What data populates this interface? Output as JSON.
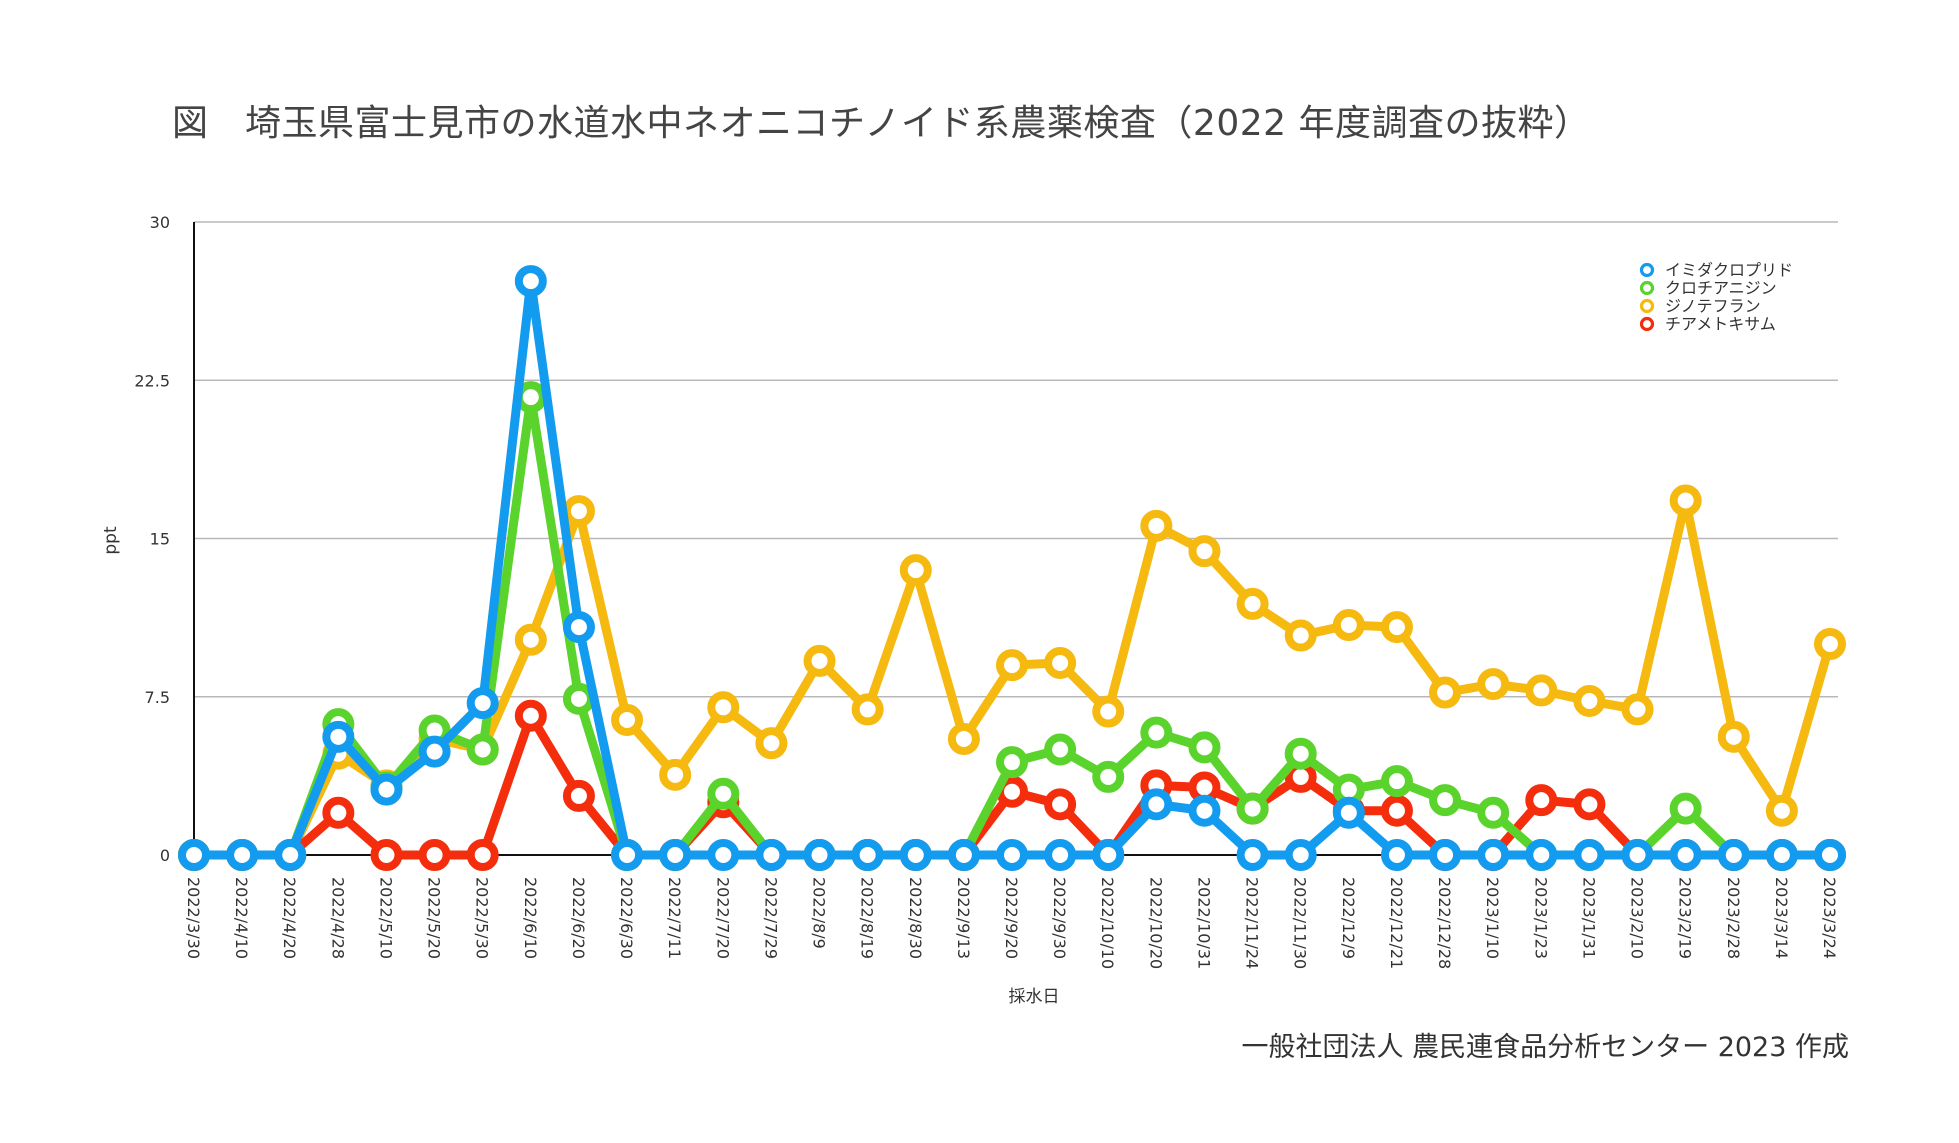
{
  "title": "図　埼玉県富士見市の水道水中ネオニコチノイド系農薬検査（2022 年度調査の抜粋）",
  "credit": "一般社団法人 農民連食品分析センター 2023 作成",
  "chart_data": {
    "type": "line",
    "xlabel": "採水日",
    "ylabel": "ppt",
    "ylim": [
      0,
      30
    ],
    "yticks": [
      "0",
      "7.5",
      "15",
      "22.5",
      "30"
    ],
    "grid": true,
    "legend_position": "top-right",
    "categories": [
      "2022/3/30",
      "2022/4/10",
      "2022/4/20",
      "2022/4/28",
      "2022/5/10",
      "2022/5/20",
      "2022/5/30",
      "2022/6/10",
      "2022/6/20",
      "2022/6/30",
      "2022/7/11",
      "2022/7/20",
      "2022/7/29",
      "2022/8/9",
      "2022/8/19",
      "2022/8/30",
      "2022/9/13",
      "2022/9/20",
      "2022/9/30",
      "2022/10/10",
      "2022/10/20",
      "2022/10/31",
      "2022/11/24",
      "2022/11/30",
      "2022/12/9",
      "2022/12/21",
      "2022/12/28",
      "2023/1/10",
      "2023/1/23",
      "2023/1/31",
      "2023/2/10",
      "2023/2/19",
      "2023/2/28",
      "2023/3/14",
      "2023/3/24"
    ],
    "series": [
      {
        "name": "ジノテフラン",
        "color": "#F5B90F",
        "values": [
          0,
          0,
          0,
          4.8,
          3.3,
          5.5,
          5.0,
          10.2,
          16.3,
          6.4,
          3.8,
          7.0,
          5.3,
          9.2,
          6.9,
          13.5,
          5.5,
          9.0,
          9.1,
          6.8,
          15.6,
          14.4,
          11.9,
          10.4,
          10.9,
          10.8,
          7.7,
          8.1,
          7.8,
          7.3,
          6.9,
          16.8,
          5.6,
          2.1,
          10.0
        ]
      },
      {
        "name": "チアメトキサム",
        "color": "#F42D0D",
        "values": [
          0,
          0,
          0,
          2.0,
          0,
          0,
          0,
          6.6,
          2.8,
          0,
          0,
          2.5,
          0,
          0,
          0,
          0,
          0,
          3.0,
          2.4,
          0,
          3.3,
          3.2,
          2.2,
          3.7,
          2.1,
          2.1,
          0,
          0,
          2.6,
          2.4,
          0,
          0,
          0,
          0,
          0
        ]
      },
      {
        "name": "クロチアニジン",
        "color": "#5AD32C",
        "values": [
          0,
          0,
          0,
          6.2,
          3.2,
          5.9,
          5.0,
          21.7,
          7.4,
          0,
          0,
          2.9,
          0,
          0,
          0,
          0,
          0,
          4.4,
          5.0,
          3.7,
          5.8,
          5.1,
          2.2,
          4.8,
          3.1,
          3.5,
          2.6,
          2.0,
          0,
          0,
          0,
          2.2,
          0,
          0,
          0
        ]
      },
      {
        "name": "イミダクロプリド",
        "color": "#139BEF",
        "values": [
          0,
          0,
          0,
          5.6,
          3.1,
          4.9,
          7.2,
          27.2,
          10.8,
          0,
          0,
          0,
          0,
          0,
          0,
          0,
          0,
          0,
          0,
          0,
          2.4,
          2.1,
          0,
          0,
          2.0,
          0,
          0,
          0,
          0,
          0,
          0,
          0,
          0,
          0,
          0
        ]
      }
    ],
    "legend_order": [
      "イミダクロプリド",
      "クロチアニジン",
      "ジノテフラン",
      "チアメトキサム"
    ]
  }
}
